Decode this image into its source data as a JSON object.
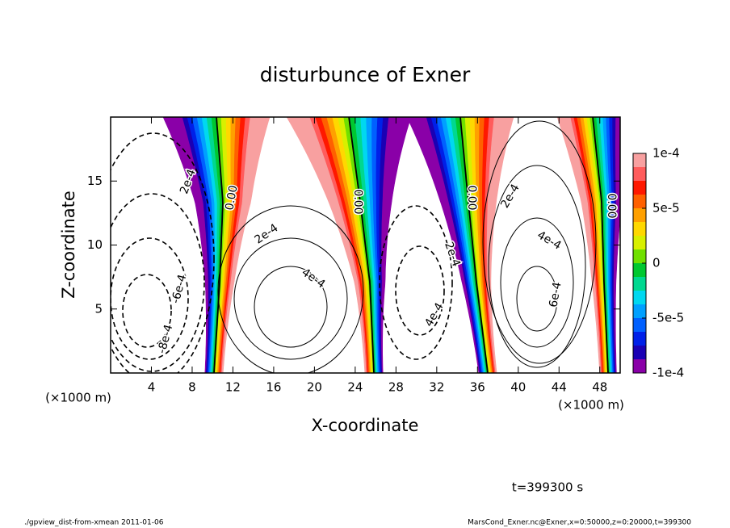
{
  "chart_data": {
    "type": "contour",
    "title": "disturbunce of Exner",
    "xlabel": "X-coordinate",
    "ylabel": "Z-coordinate",
    "x_unit_label": "(×1000 m)",
    "xlim": [
      0,
      50
    ],
    "xticks": [
      4,
      8,
      12,
      16,
      20,
      24,
      28,
      32,
      36,
      40,
      44,
      48
    ],
    "ylim": [
      0,
      20
    ],
    "yticks": [
      5,
      10,
      15
    ],
    "colorbar": {
      "levels": [
        -0.0001,
        -8.75e-05,
        -7.5e-05,
        -6.25e-05,
        -5e-05,
        -3.75e-05,
        -2.5e-05,
        -1.25e-05,
        0,
        1.25e-05,
        2.5e-05,
        3.75e-05,
        5e-05,
        6.25e-05,
        7.5e-05,
        8.75e-05,
        0.0001
      ],
      "colors": [
        "#8a00a8",
        "#1a00b4",
        "#0020e8",
        "#0060ff",
        "#00a0ff",
        "#00d8f0",
        "#00d890",
        "#00c830",
        "#70e000",
        "#d8f000",
        "#ffd800",
        "#ffa000",
        "#ff6000",
        "#ff1800",
        "#ff5c5c",
        "#f8a0a0"
      ],
      "ticks": [
        {
          "value": 0.0001,
          "label": "1e-4"
        },
        {
          "value": 5e-05,
          "label": "5e-5"
        },
        0,
        {
          "value": -5e-05,
          "label": "-5e-5"
        },
        {
          "value": -0.0001,
          "label": "-1e-4"
        }
      ]
    },
    "contour_labels": [
      "2e-4",
      "0.00",
      "-6e-4",
      "-8e-4",
      "2e-4",
      "4e-4",
      "0.00",
      "2e-4",
      "4e-4",
      "0.00",
      "2e-4",
      "4e-4",
      "6e-4",
      "0.00"
    ],
    "time_label": "t=399300 s"
  },
  "footer": {
    "left": "./gpview_dist-from-xmean  2011-01-06",
    "right": "MarsCond_Exner.nc@Exner,x=0:50000,z=0:20000,t=399300"
  }
}
